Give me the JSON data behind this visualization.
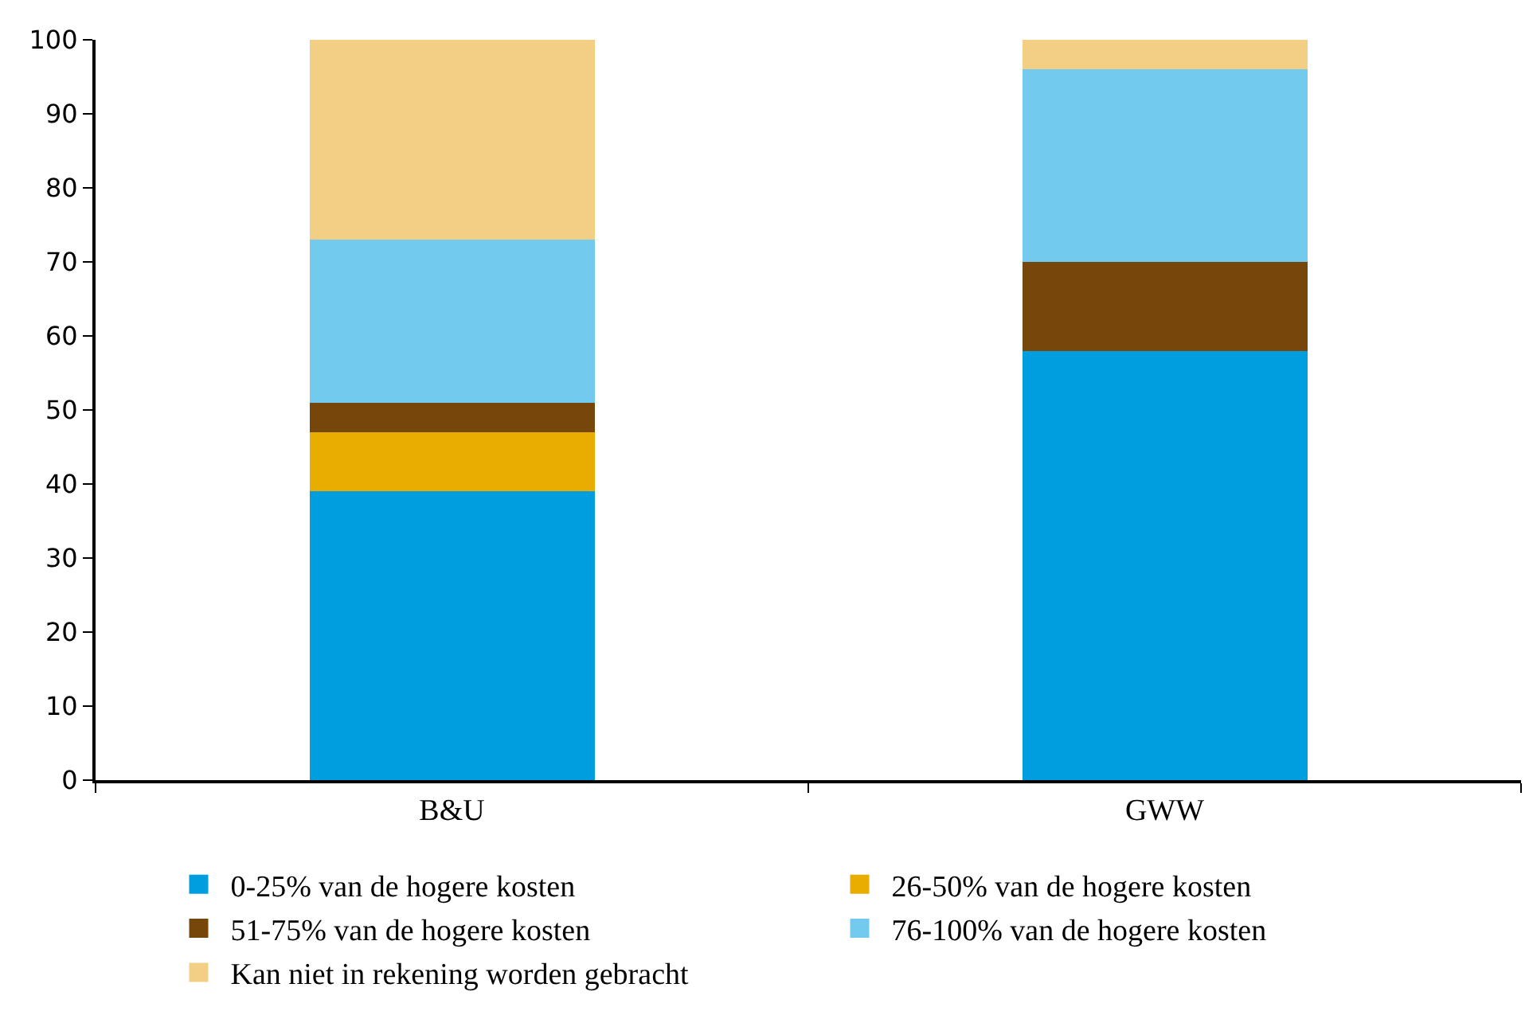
{
  "chart_data": {
    "type": "bar",
    "stacked": true,
    "categories": [
      "B&U",
      "GWW"
    ],
    "series": [
      {
        "name": "0-25% van de hogere kosten",
        "color": "#009ddf",
        "values": [
          39,
          58
        ]
      },
      {
        "name": "26-50% van de hogere kosten",
        "color": "#e9ac00",
        "values": [
          8,
          0
        ]
      },
      {
        "name": "51-75% van de hogere kosten",
        "color": "#77460a",
        "values": [
          4,
          12
        ]
      },
      {
        "name": "76-100% van de hogere kosten",
        "color": "#72caef",
        "values": [
          22,
          26
        ]
      },
      {
        "name": "Kan niet in rekening worden gebracht",
        "color": "#f3cf86",
        "values": [
          27,
          4
        ]
      }
    ],
    "ylim": [
      0,
      100
    ],
    "yticks": [
      0,
      10,
      20,
      30,
      40,
      50,
      60,
      70,
      80,
      90,
      100
    ],
    "legend": "bottom"
  }
}
